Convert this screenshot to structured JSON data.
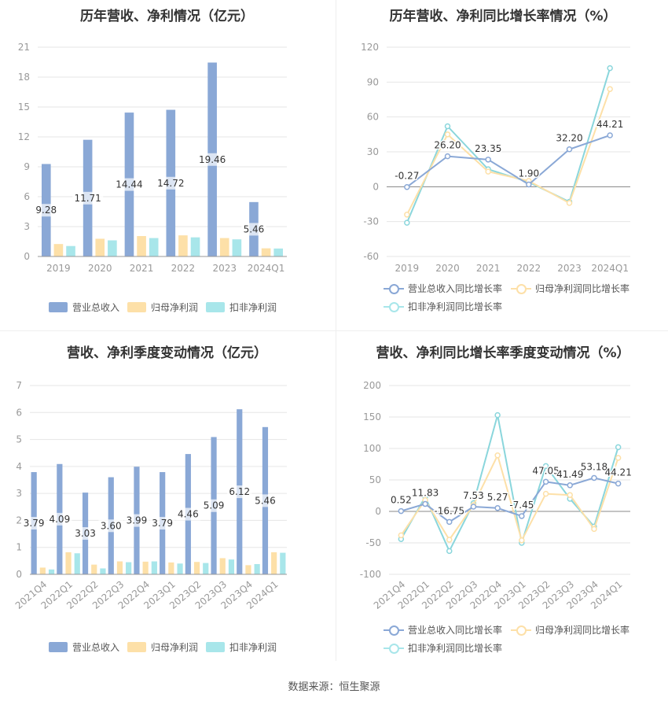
{
  "source": "数据来源：恒生聚源",
  "colors": {
    "revenue": "#8aa8d6",
    "net_profit": "#fde0a8",
    "deducted": "#a8e6ea",
    "rev_line": "#8aa8d6",
    "np_line": "#fde0a8",
    "dn_line": "#8ad6dc"
  },
  "chart_data": [
    {
      "id": "annual-bar",
      "type": "bar",
      "title": "历年营收、净利情况（亿元）",
      "categories": [
        "2019",
        "2020",
        "2021",
        "2022",
        "2023",
        "2024Q1"
      ],
      "ylim": [
        0,
        21
      ],
      "yticks": [
        "0",
        "3",
        "6",
        "9",
        "12",
        "15",
        "18",
        "21"
      ],
      "series": [
        {
          "name": "营业总收入",
          "values": [
            9.28,
            11.71,
            14.44,
            14.72,
            19.46,
            5.46
          ]
        },
        {
          "name": "归母净利润",
          "values": [
            1.25,
            1.78,
            2.05,
            2.12,
            1.85,
            0.82
          ]
        },
        {
          "name": "扣非净利润",
          "values": [
            1.05,
            1.62,
            1.85,
            1.92,
            1.72,
            0.8
          ]
        }
      ],
      "data_labels": [
        "9.28",
        "11.71",
        "14.44",
        "14.72",
        "19.46",
        "5.46"
      ],
      "legend_position": "bottom",
      "grid": true
    },
    {
      "id": "annual-line",
      "type": "line",
      "title": "历年营收、净利同比增长率情况（%）",
      "categories": [
        "2019",
        "2020",
        "2021",
        "2022",
        "2023",
        "2024Q1"
      ],
      "ylim": [
        -60,
        120
      ],
      "yticks": [
        "-60",
        "-30",
        "0",
        "30",
        "60",
        "90",
        "120"
      ],
      "series": [
        {
          "name": "营业总收入同比增长率",
          "values": [
            -0.27,
            26.2,
            23.35,
            1.9,
            32.2,
            44.21
          ]
        },
        {
          "name": "归母净利润同比增长率",
          "values": [
            -24,
            45,
            13,
            5,
            -14,
            84
          ]
        },
        {
          "name": "扣非净利润同比增长率",
          "values": [
            -31,
            52,
            15,
            4,
            -13,
            102
          ]
        }
      ],
      "data_labels": [
        "-0.27",
        "26.20",
        "23.35",
        "1.90",
        "32.20",
        "44.21"
      ],
      "legend_position": "bottom",
      "grid": true
    },
    {
      "id": "quarter-bar",
      "type": "bar",
      "title": "营收、净利季度变动情况（亿元）",
      "categories": [
        "2021Q4",
        "2022Q1",
        "2022Q2",
        "2022Q3",
        "2022Q4",
        "2023Q1",
        "2023Q2",
        "2023Q3",
        "2023Q4",
        "2024Q1"
      ],
      "ylim": [
        0,
        7
      ],
      "yticks": [
        "0",
        "1",
        "2",
        "3",
        "4",
        "5",
        "6",
        "7"
      ],
      "series": [
        {
          "name": "营业总收入",
          "values": [
            3.79,
            4.09,
            3.03,
            3.6,
            3.99,
            3.79,
            4.46,
            5.09,
            6.12,
            5.46
          ]
        },
        {
          "name": "归母净利润",
          "values": [
            0.25,
            0.82,
            0.36,
            0.48,
            0.47,
            0.44,
            0.46,
            0.6,
            0.34,
            0.82
          ]
        },
        {
          "name": "扣非净利润",
          "values": [
            0.18,
            0.78,
            0.22,
            0.45,
            0.48,
            0.4,
            0.42,
            0.55,
            0.38,
            0.8
          ]
        }
      ],
      "data_labels": [
        "3.79",
        "4.09",
        "3.03",
        "3.60",
        "3.99",
        "3.79",
        "4.46",
        "5.09",
        "6.12",
        "5.46"
      ],
      "legend_position": "bottom",
      "grid": true
    },
    {
      "id": "quarter-line",
      "type": "line",
      "title": "营收、净利同比增长率季度变动情况（%）",
      "categories": [
        "2021Q4",
        "2022Q1",
        "2022Q2",
        "2022Q3",
        "2022Q4",
        "2023Q1",
        "2023Q2",
        "2023Q3",
        "2023Q4",
        "2024Q1"
      ],
      "ylim": [
        -100,
        200
      ],
      "yticks": [
        "-100",
        "-50",
        "0",
        "50",
        "100",
        "150",
        "200"
      ],
      "series": [
        {
          "name": "营业总收入同比增长率",
          "values": [
            0.52,
            11.83,
            -16.75,
            7.53,
            5.27,
            -7.45,
            47.05,
            41.49,
            53.18,
            44.21
          ]
        },
        {
          "name": "归母净利润同比增长率",
          "values": [
            -38,
            18,
            -45,
            10,
            89,
            -46,
            28,
            26,
            -28,
            85
          ]
        },
        {
          "name": "扣非净利润同比增长率",
          "values": [
            -44,
            23,
            -63,
            13,
            153,
            -50,
            72,
            20,
            -24,
            102
          ]
        }
      ],
      "data_labels": [
        "0.52",
        "11.83",
        "-16.75",
        "7.53",
        "5.27",
        "-7.45",
        "47.05",
        "41.49",
        "53.18",
        "44.21"
      ],
      "legend_position": "bottom",
      "grid": true
    }
  ]
}
